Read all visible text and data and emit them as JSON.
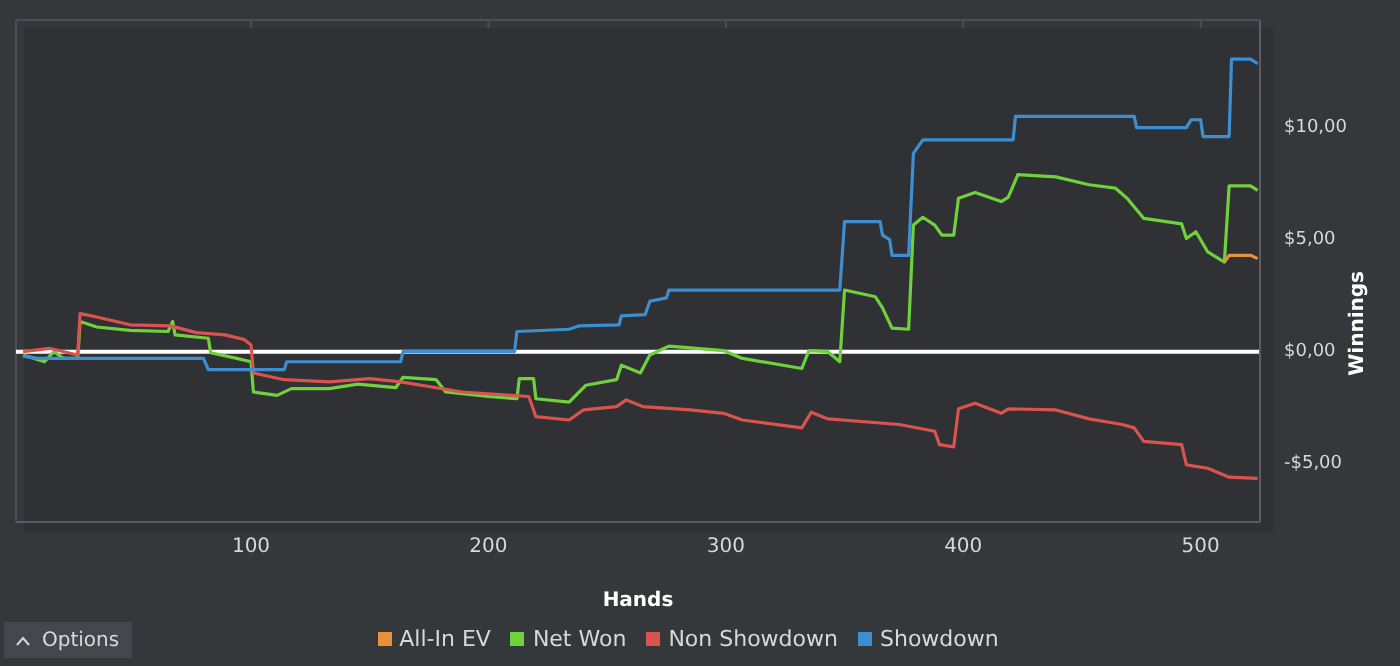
{
  "chart_data": {
    "type": "line",
    "xlabel": "Hands",
    "ylabel": "Winnings",
    "xlim": [
      1,
      525
    ],
    "xticks": [
      100,
      200,
      300,
      400,
      500
    ],
    "ylim": [
      -7.6,
      14.8
    ],
    "yticks": [
      {
        "value": -5,
        "label": "-$5,00"
      },
      {
        "value": 0,
        "label": "$0,00"
      },
      {
        "value": 5,
        "label": "$5,00"
      },
      {
        "value": 10,
        "label": "$10,00"
      }
    ],
    "grid": true,
    "legend": "bottom",
    "marker": "none",
    "line_style": "solid",
    "ref_lines": [
      {
        "axis": "y",
        "value": 0,
        "label": null,
        "color": "#ffffff"
      }
    ],
    "annotations": [
      "Options"
    ],
    "series": [
      {
        "name": "Net Won",
        "color": "#6fd13c",
        "x": [
          4,
          13,
          17,
          21,
          27,
          28,
          35,
          49,
          65,
          67,
          68,
          82,
          83,
          94,
          100,
          101,
          111,
          117,
          133,
          145,
          161,
          164,
          178,
          182,
          200,
          212,
          213,
          219,
          220,
          234,
          241,
          254,
          256,
          264,
          268,
          276,
          299,
          307,
          332,
          335,
          343,
          348,
          350,
          363,
          366,
          370,
          377,
          379,
          383,
          388,
          391,
          396,
          398,
          405,
          416,
          419,
          423,
          439,
          453,
          464,
          469,
          476,
          492,
          494,
          498,
          503,
          510,
          512,
          521,
          524
        ],
        "values": [
          -0.15,
          -0.45,
          0,
          -0.3,
          -0.3,
          1.35,
          1.1,
          0.95,
          0.9,
          1.35,
          0.75,
          0.6,
          -0.05,
          -0.3,
          -0.45,
          -1.8,
          -1.95,
          -1.65,
          -1.65,
          -1.45,
          -1.6,
          -1.15,
          -1.25,
          -1.8,
          -2.0,
          -2.1,
          -1.2,
          -1.2,
          -2.1,
          -2.25,
          -1.5,
          -1.25,
          -0.6,
          -0.95,
          -0.15,
          0.25,
          0.05,
          -0.3,
          -0.75,
          0.05,
          0,
          -0.45,
          2.75,
          2.45,
          1.95,
          1.05,
          1.0,
          5.65,
          6.0,
          5.65,
          5.2,
          5.2,
          6.85,
          7.1,
          6.7,
          6.9,
          7.9,
          7.8,
          7.45,
          7.3,
          6.85,
          5.95,
          5.7,
          5.05,
          5.35,
          4.45,
          4.0,
          7.4,
          7.4,
          7.2
        ]
      },
      {
        "name": "Non Showdown",
        "color": "#d9534f",
        "x": [
          4,
          15,
          27,
          28,
          35,
          49,
          66,
          77,
          89,
          97,
          100,
          101,
          114,
          133,
          150,
          163,
          189,
          217,
          220,
          234,
          240,
          254,
          258,
          265,
          285,
          299,
          307,
          332,
          336,
          343,
          373,
          388,
          390,
          396,
          398,
          405,
          416,
          419,
          439,
          453,
          467,
          472,
          476,
          492,
          494,
          503,
          512,
          524
        ],
        "values": [
          0,
          0.15,
          -0.15,
          1.7,
          1.55,
          1.2,
          1.15,
          0.85,
          0.75,
          0.55,
          0.3,
          -0.95,
          -1.25,
          -1.35,
          -1.2,
          -1.35,
          -1.8,
          -2.0,
          -2.9,
          -3.05,
          -2.6,
          -2.45,
          -2.15,
          -2.45,
          -2.6,
          -2.75,
          -3.05,
          -3.4,
          -2.7,
          -3.0,
          -3.25,
          -3.55,
          -4.15,
          -4.25,
          -2.55,
          -2.3,
          -2.75,
          -2.55,
          -2.6,
          -3.0,
          -3.25,
          -3.4,
          -4.0,
          -4.15,
          -5.05,
          -5.2,
          -5.6,
          -5.65
        ]
      },
      {
        "name": "Showdown",
        "color": "#3d8fd1",
        "x": [
          4,
          10,
          27,
          80,
          82,
          114,
          115,
          163,
          164,
          211,
          212,
          234,
          238,
          255,
          256,
          266,
          268,
          275,
          276,
          348,
          350,
          365,
          366,
          369,
          370,
          377,
          379,
          383,
          421,
          422,
          472,
          473,
          494,
          496,
          500,
          501,
          512,
          513,
          521,
          524
        ],
        "values": [
          -0.2,
          -0.3,
          -0.3,
          -0.3,
          -0.8,
          -0.8,
          -0.45,
          -0.45,
          0,
          0,
          0.9,
          1.0,
          1.15,
          1.2,
          1.6,
          1.65,
          2.25,
          2.4,
          2.75,
          2.75,
          5.8,
          5.8,
          5.2,
          5.0,
          4.3,
          4.3,
          8.85,
          9.45,
          9.45,
          10.5,
          10.5,
          10.0,
          10.0,
          10.35,
          10.35,
          9.6,
          9.6,
          13.05,
          13.05,
          12.85
        ]
      },
      {
        "name": "All-In EV",
        "color": "#e8913a",
        "x": [
          510,
          512,
          521,
          524
        ],
        "values": [
          4.0,
          4.3,
          4.3,
          4.15
        ]
      }
    ]
  }
}
